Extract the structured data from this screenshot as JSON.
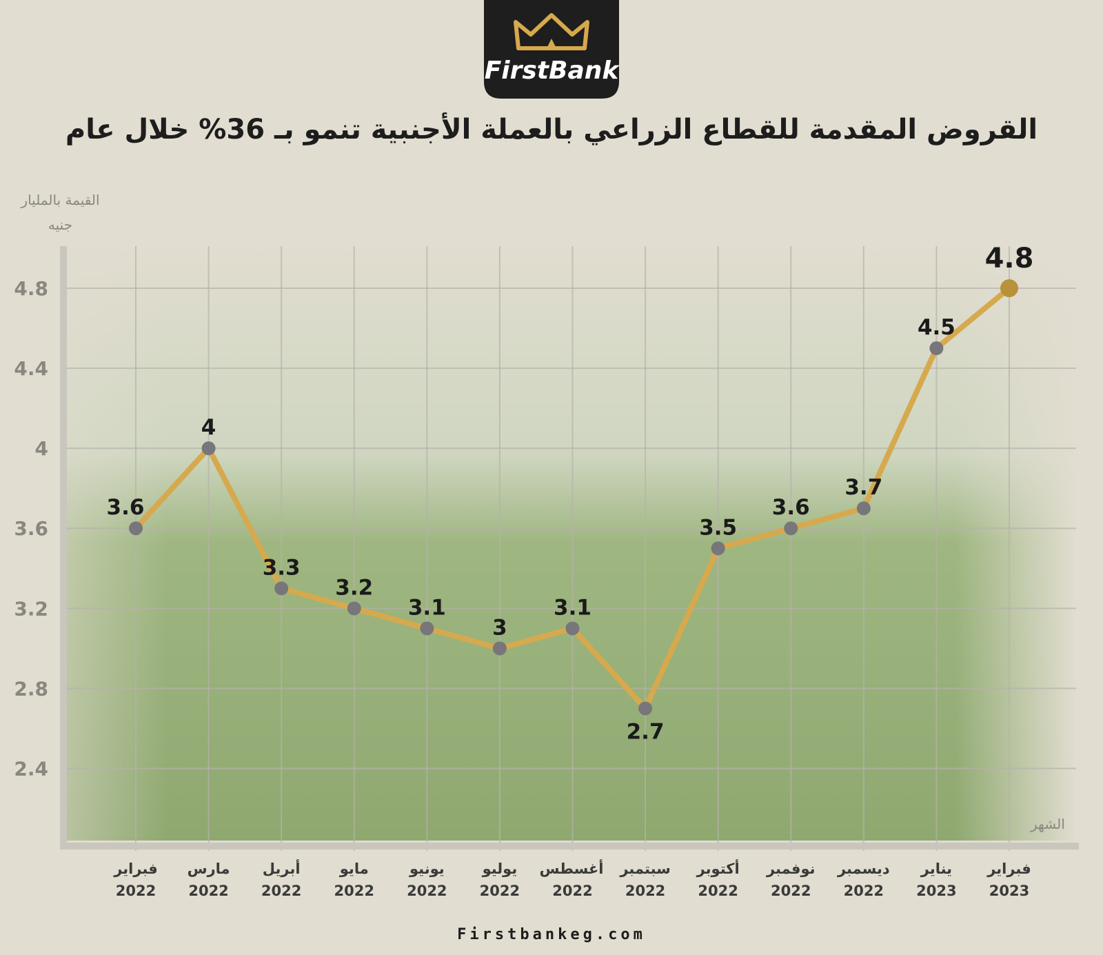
{
  "brand": "FirstBank",
  "footer": "Firstbankeg.com",
  "chart_data": {
    "type": "line",
    "title": "القروض المقدمة للقطاع الزراعي بالعملة الأجنبية تنمو بـ 36% خلال عام",
    "y_label": "القيمة بالمليار جنيه",
    "x_label": "الشهر",
    "x": [
      "فبراير 2022",
      "مارس 2022",
      "أبريل 2022",
      "مايو 2022",
      "يونيو 2022",
      "يوليو 2022",
      "أغسطس 2022",
      "سبتمبر 2022",
      "أكتوبر 2022",
      "نوفمبر 2022",
      "ديسمبر 2022",
      "يناير 2023",
      "فبراير 2023"
    ],
    "values": [
      3.6,
      4,
      3.3,
      3.2,
      3.1,
      3,
      3.1,
      2.7,
      3.5,
      3.6,
      3.7,
      4.5,
      4.8
    ],
    "color": "#d6a94e",
    "marker_color": "#77767a",
    "highlight_color": "#b8913a",
    "ylim": [
      2.04,
      5.01
    ],
    "yticks": [
      2.4,
      2.8,
      3.2,
      3.6,
      4,
      4.4,
      4.8
    ],
    "grid": true
  }
}
